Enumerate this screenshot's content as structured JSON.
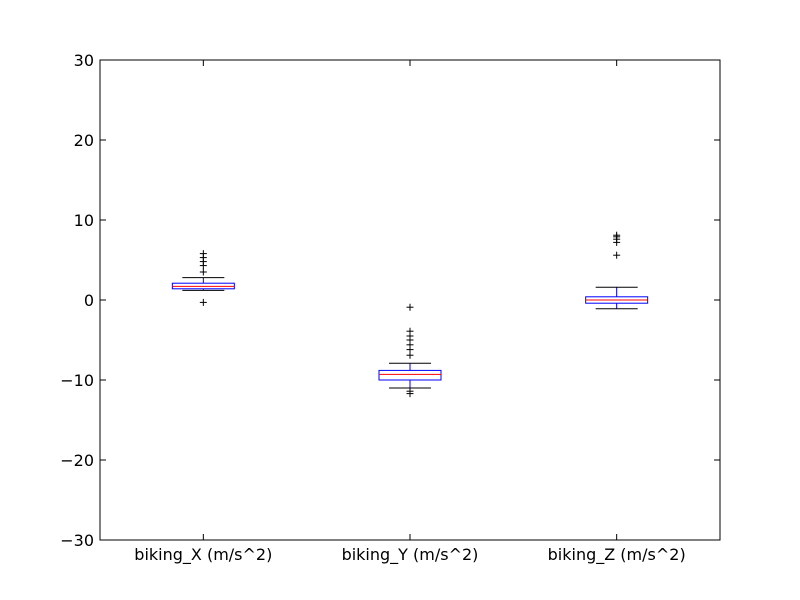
{
  "chart_data": {
    "type": "box",
    "categories": [
      "biking_X (m/s^2)",
      "biking_Y (m/s^2)",
      "biking_Z (m/s^2)"
    ],
    "ylim": [
      -30,
      30
    ],
    "yticks": [
      30,
      20,
      10,
      0,
      -10,
      -20,
      -30
    ],
    "ytick_labels": [
      "30",
      "20",
      "10",
      "0",
      "−10",
      "−20",
      "−30"
    ],
    "grid": false,
    "colors": {
      "box": "#0000ff",
      "median": "#ff0000",
      "whisker": "#0000ff",
      "cap": "#000000",
      "flier": "#000000",
      "axes": "#000000"
    },
    "boxes": [
      {
        "name": "biking_X (m/s^2)",
        "whisker_low": 1.2,
        "q1": 1.4,
        "median": 1.7,
        "q3": 2.1,
        "whisker_high": 2.8,
        "fliers": [
          3.5,
          4.3,
          4.8,
          5.3,
          5.8,
          -0.3
        ]
      },
      {
        "name": "biking_Y (m/s^2)",
        "whisker_low": -11.0,
        "q1": -10.0,
        "median": -9.3,
        "q3": -8.8,
        "whisker_high": -7.9,
        "fliers": [
          -0.9,
          -3.9,
          -4.5,
          -5.0,
          -5.6,
          -6.2,
          -6.9,
          -11.4,
          -11.7
        ]
      },
      {
        "name": "biking_Z (m/s^2)",
        "whisker_low": -1.1,
        "q1": -0.4,
        "median": 0.0,
        "q3": 0.4,
        "whisker_high": 1.6,
        "fliers": [
          5.6,
          7.2,
          7.6,
          7.9,
          8.1
        ]
      }
    ]
  }
}
